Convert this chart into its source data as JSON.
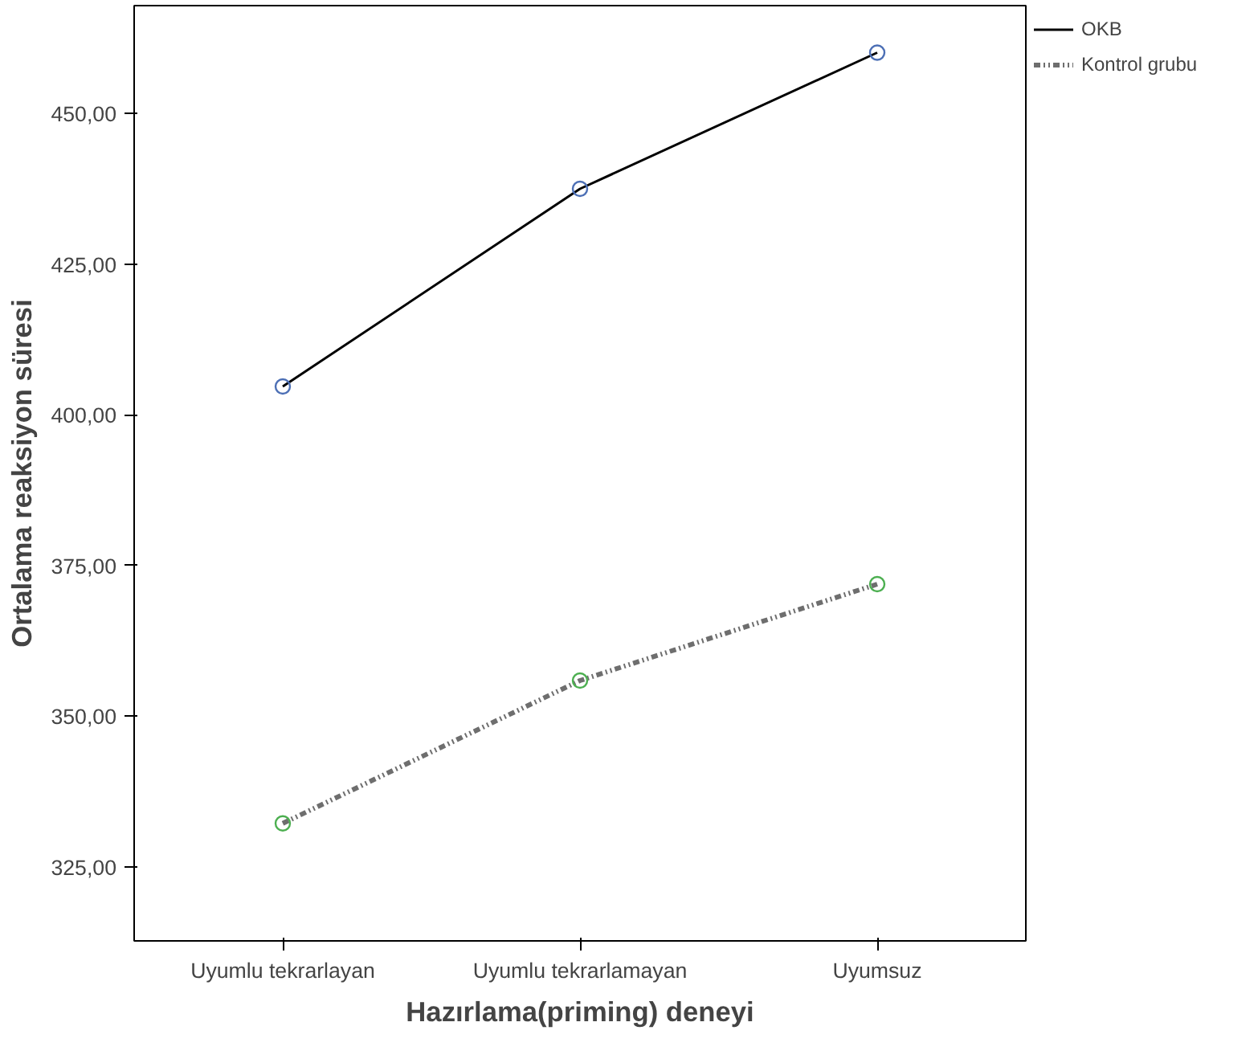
{
  "chart_data": {
    "type": "line",
    "xlabel": "Hazırlama(priming) deneyi",
    "ylabel": "Ortalama reaksiyon süresi",
    "categories": [
      "Uyumlu tekrarlayan",
      "Uyumlu tekrarlamayan",
      "Uyumsuz"
    ],
    "series": [
      {
        "name": "OKB",
        "color": "#000000",
        "colors": [
          "#4c6fb5",
          "#4c6fb5",
          "#4c6fb5"
        ],
        "line_style": "solid",
        "values": [
          404.7,
          437.5,
          460.1
        ]
      },
      {
        "name": "Kontrol grubu",
        "color": "#6e6e6e",
        "colors": [
          "#4caf50",
          "#4caf50",
          "#4caf50"
        ],
        "line_style": "dashed",
        "values": [
          332.2,
          355.9,
          371.9
        ]
      }
    ],
    "ylim": [
      312.7,
      467.9
    ],
    "yticks": [
      {
        "value": 325,
        "label": "325,00"
      },
      {
        "value": 350,
        "label": "350,00"
      },
      {
        "value": 375,
        "label": "375,00"
      },
      {
        "value": 400,
        "label": "400,00"
      },
      {
        "value": 425,
        "label": "425,00"
      },
      {
        "value": 450,
        "label": "450,00"
      }
    ],
    "marker": "circle",
    "grid": false,
    "legend": "top right"
  }
}
